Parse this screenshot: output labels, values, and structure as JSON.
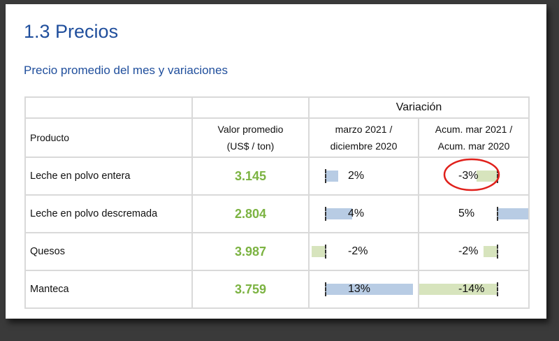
{
  "title": "1.3 Precios",
  "subtitle": "Precio promedio del mes y variaciones",
  "table": {
    "group_header": "Variación",
    "col_producto": "Producto",
    "col_valor": [
      "Valor promedio",
      "(US$ / ton)"
    ],
    "col_var1": [
      "marzo 2021 /",
      "diciembre 2020"
    ],
    "col_var2": [
      "Acum. mar 2021 /",
      "Acum. mar 2020"
    ],
    "rows": [
      {
        "producto": "Leche en polvo entera",
        "valor": "3.145",
        "var1": "2%",
        "var2": "-3%",
        "v1": 2,
        "v2": -3
      },
      {
        "producto": "Leche en polvo descremada",
        "valor": "2.804",
        "var1": "4%",
        "var2": "5%",
        "v1": 4,
        "v2": 5
      },
      {
        "producto": "Quesos",
        "valor": "3.987",
        "var1": "-2%",
        "var2": "-2%",
        "v1": -2,
        "v2": -2
      },
      {
        "producto": "Manteca",
        "valor": "3.759",
        "var1": "13%",
        "var2": "-14%",
        "v1": 13,
        "v2": -14
      }
    ]
  },
  "colors": {
    "positive_bar": "#b8cce4",
    "negative_bar": "#d7e4bd",
    "highlight_circle": "#e0201b",
    "value_green": "#7cb342",
    "heading_blue": "#1f4e9c"
  }
}
